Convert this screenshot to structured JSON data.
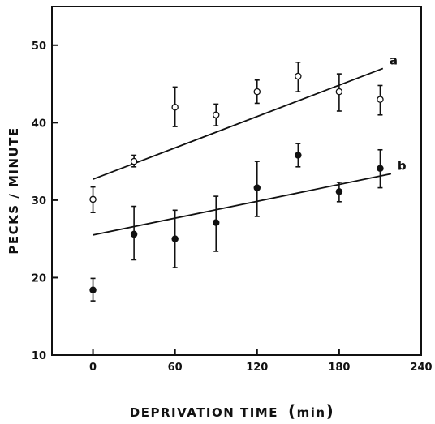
{
  "chart_data": {
    "type": "scatter",
    "title": "",
    "xlabel": "DEPRIVATION TIME",
    "xlabel_unit": "min",
    "ylabel": "PECKS / MINUTE",
    "xlim": [
      -30,
      240
    ],
    "ylim": [
      10,
      55
    ],
    "x_ticks": [
      0,
      60,
      120,
      180,
      240
    ],
    "x_tick_labels": [
      "0",
      "60",
      "120",
      "180",
      "240"
    ],
    "y_ticks": [
      10,
      20,
      30,
      40,
      50
    ],
    "y_tick_labels": [
      "10",
      "20",
      "30",
      "40",
      "50"
    ],
    "grid": false,
    "series": [
      {
        "name": "a",
        "marker": "open-circle",
        "points": [
          {
            "x": 0,
            "y": 30.1,
            "err_low": 28.4,
            "err_high": 31.7
          },
          {
            "x": 30,
            "y": 35.0,
            "err_low": 34.3,
            "err_high": 35.8
          },
          {
            "x": 60,
            "y": 42.0,
            "err_low": 39.5,
            "err_high": 44.6
          },
          {
            "x": 90,
            "y": 41.0,
            "err_low": 39.6,
            "err_high": 42.4
          },
          {
            "x": 120,
            "y": 44.0,
            "err_low": 42.5,
            "err_high": 45.5
          },
          {
            "x": 150,
            "y": 46.0,
            "err_low": 44.0,
            "err_high": 47.8
          },
          {
            "x": 180,
            "y": 44.0,
            "err_low": 41.5,
            "err_high": 46.3
          },
          {
            "x": 210,
            "y": 43.0,
            "err_low": 41.0,
            "err_high": 44.8
          }
        ],
        "fit": {
          "x": [
            0,
            212
          ],
          "y": [
            32.7,
            47.0
          ]
        }
      },
      {
        "name": "b",
        "marker": "filled-circle",
        "points": [
          {
            "x": 0,
            "y": 18.4,
            "err_low": 17.0,
            "err_high": 19.9
          },
          {
            "x": 30,
            "y": 25.6,
            "err_low": 22.3,
            "err_high": 29.2
          },
          {
            "x": 60,
            "y": 25.0,
            "err_low": 21.3,
            "err_high": 28.7
          },
          {
            "x": 90,
            "y": 27.1,
            "err_low": 23.4,
            "err_high": 30.5
          },
          {
            "x": 120,
            "y": 31.6,
            "err_low": 27.9,
            "err_high": 35.0
          },
          {
            "x": 150,
            "y": 35.8,
            "err_low": 34.3,
            "err_high": 37.3
          },
          {
            "x": 180,
            "y": 31.1,
            "err_low": 29.8,
            "err_high": 32.3
          },
          {
            "x": 210,
            "y": 34.1,
            "err_low": 31.6,
            "err_high": 36.5
          }
        ],
        "fit": {
          "x": [
            0,
            218
          ],
          "y": [
            25.5,
            33.4
          ]
        }
      }
    ]
  }
}
